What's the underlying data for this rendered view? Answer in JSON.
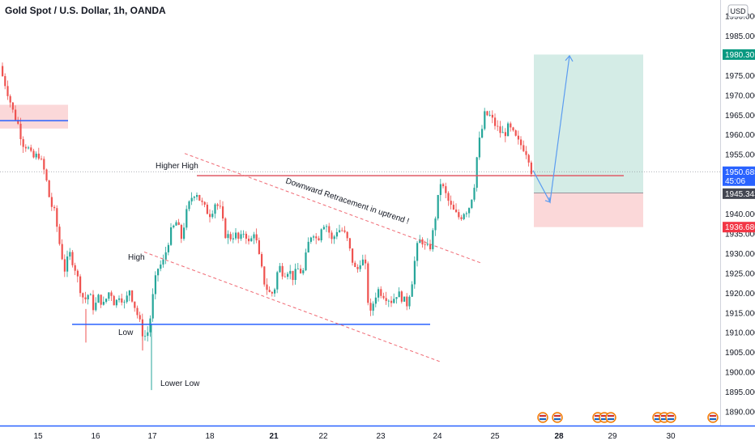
{
  "header": {
    "title": "Gold Spot / U.S. Dollar, 1h, OANDA"
  },
  "currency_badge": "USD",
  "countdown": "45:06",
  "chart_data": {
    "type": "candlestick",
    "title": "Gold Spot / U.S. Dollar, 1h, OANDA",
    "ylim": [
      1886,
      1993
    ],
    "y_ticks": [
      "1890.000",
      "1895.000",
      "1900.000",
      "1905.000",
      "1910.000",
      "1915.000",
      "1920.000",
      "1925.000",
      "1930.000",
      "1935.000",
      "1940.000",
      "1945.000",
      "1950.000",
      "1955.000",
      "1960.000",
      "1965.000",
      "1970.000",
      "1975.000",
      "1980.000",
      "1985.000",
      "1990.000"
    ],
    "x_ticks": [
      {
        "label": "15",
        "bold": false
      },
      {
        "label": "16",
        "bold": false
      },
      {
        "label": "17",
        "bold": false
      },
      {
        "label": "18",
        "bold": false
      },
      {
        "label": "21",
        "bold": true
      },
      {
        "label": "22",
        "bold": false
      },
      {
        "label": "23",
        "bold": false
      },
      {
        "label": "24",
        "bold": false
      },
      {
        "label": "25",
        "bold": false
      },
      {
        "label": "28",
        "bold": true
      },
      {
        "label": "29",
        "bold": false
      },
      {
        "label": "30",
        "bold": false
      }
    ],
    "price_path": [
      [
        0,
        1978
      ],
      [
        10,
        1972
      ],
      [
        18,
        1966
      ],
      [
        24,
        1963
      ],
      [
        30,
        1958
      ],
      [
        36,
        1957
      ],
      [
        42,
        1954
      ],
      [
        50,
        1955
      ],
      [
        58,
        1950
      ],
      [
        64,
        1943
      ],
      [
        70,
        1940
      ],
      [
        76,
        1932
      ],
      [
        82,
        1926
      ],
      [
        88,
        1930
      ],
      [
        94,
        1927
      ],
      [
        100,
        1922
      ],
      [
        106,
        1918
      ],
      [
        112,
        1920
      ],
      [
        118,
        1916
      ],
      [
        124,
        1919
      ],
      [
        130,
        1917
      ],
      [
        138,
        1921
      ],
      [
        144,
        1917
      ],
      [
        150,
        1920
      ],
      [
        156,
        1917
      ],
      [
        162,
        1921
      ],
      [
        168,
        1917
      ],
      [
        174,
        1913
      ],
      [
        178,
        1910
      ],
      [
        182,
        1909
      ],
      [
        186,
        1911
      ],
      [
        190,
        1918
      ],
      [
        196,
        1926
      ],
      [
        204,
        1928
      ],
      [
        212,
        1935
      ],
      [
        220,
        1938
      ],
      [
        226,
        1934
      ],
      [
        232,
        1940
      ],
      [
        238,
        1944
      ],
      [
        244,
        1946
      ],
      [
        250,
        1943
      ],
      [
        256,
        1941
      ],
      [
        262,
        1940
      ],
      [
        268,
        1943
      ],
      [
        274,
        1941
      ],
      [
        280,
        1935
      ],
      [
        286,
        1934
      ],
      [
        292,
        1935
      ],
      [
        298,
        1933
      ],
      [
        304,
        1936
      ],
      [
        310,
        1932
      ],
      [
        316,
        1936
      ],
      [
        322,
        1929
      ],
      [
        328,
        1923
      ],
      [
        334,
        1920
      ],
      [
        340,
        1920
      ],
      [
        346,
        1927
      ],
      [
        352,
        1925
      ],
      [
        358,
        1926
      ],
      [
        364,
        1924
      ],
      [
        370,
        1926
      ],
      [
        376,
        1925
      ],
      [
        382,
        1932
      ],
      [
        388,
        1936
      ],
      [
        394,
        1933
      ],
      [
        400,
        1938
      ],
      [
        406,
        1937
      ],
      [
        412,
        1933
      ],
      [
        418,
        1936
      ],
      [
        424,
        1936
      ],
      [
        430,
        1934
      ],
      [
        436,
        1929
      ],
      [
        442,
        1925
      ],
      [
        448,
        1929
      ],
      [
        454,
        1926
      ],
      [
        458,
        1913
      ],
      [
        462,
        1917
      ],
      [
        468,
        1921
      ],
      [
        474,
        1920
      ],
      [
        480,
        1919
      ],
      [
        486,
        1918
      ],
      [
        492,
        1920
      ],
      [
        498,
        1919
      ],
      [
        504,
        1917
      ],
      [
        510,
        1922
      ],
      [
        516,
        1931
      ],
      [
        522,
        1934
      ],
      [
        528,
        1931
      ],
      [
        534,
        1932
      ],
      [
        540,
        1940
      ],
      [
        546,
        1948
      ],
      [
        552,
        1945
      ],
      [
        558,
        1942
      ],
      [
        564,
        1940
      ],
      [
        570,
        1939
      ],
      [
        576,
        1941
      ],
      [
        580,
        1941
      ],
      [
        584,
        1944
      ],
      [
        588,
        1948
      ],
      [
        592,
        1957
      ],
      [
        596,
        1960
      ],
      [
        600,
        1965
      ],
      [
        606,
        1965
      ],
      [
        612,
        1963
      ],
      [
        618,
        1961
      ],
      [
        624,
        1960
      ],
      [
        630,
        1962
      ],
      [
        636,
        1960
      ],
      [
        642,
        1958
      ],
      [
        648,
        1957
      ],
      [
        654,
        1955
      ],
      [
        658,
        1951
      ]
    ],
    "levels": {
      "higher_high_line": 1949.7,
      "low_support_line": 1912.1,
      "upper_resistance_line": 1963.6,
      "target": 1980.301,
      "entry": 1945.343,
      "stop": 1936.686,
      "current": 1950.685
    },
    "channel": {
      "upper": [
        [
          228,
          1955.3
        ],
        [
          594,
          1927.6
        ]
      ],
      "lower": [
        [
          178,
          1930.4
        ],
        [
          543,
          1902.7
        ]
      ]
    },
    "projection": [
      [
        658,
        1951
      ],
      [
        679,
        1943
      ],
      [
        703,
        1980
      ]
    ],
    "price_tags": {
      "target": "1980.301",
      "current": "1950.685",
      "entry": "1945.343",
      "stop": "1936.686"
    },
    "annotations": {
      "higher_high": "Higher High",
      "high": "High",
      "low": "Low",
      "lower_low": "Lower Low",
      "downward_retracement": "Downward Retracement in uptrend !"
    },
    "colors": {
      "up": "#26a69a",
      "down": "#ef5350",
      "blue": "#2962ff",
      "target_zone": "#d4ece6",
      "stop_zone": "#fbd8d9",
      "target_tag": "#089981",
      "stop_tag": "#f23645",
      "current_tag": "#2962ff",
      "entry_tag": "#434651"
    }
  }
}
